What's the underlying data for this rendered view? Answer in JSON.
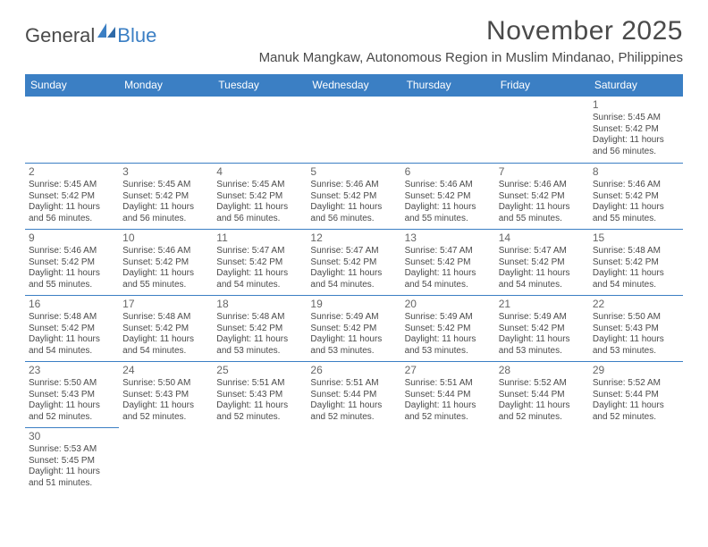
{
  "logo": {
    "text1": "General",
    "text2": "Blue"
  },
  "title": "November 2025",
  "location": "Manuk Mangkaw, Autonomous Region in Muslim Mindanao, Philippines",
  "colors": {
    "header_bg": "#3b7fc4",
    "header_text": "#ffffff",
    "rule": "#3b7fc4",
    "text": "#4a4a4a",
    "daynum": "#666666",
    "background": "#ffffff"
  },
  "day_names": [
    "Sunday",
    "Monday",
    "Tuesday",
    "Wednesday",
    "Thursday",
    "Friday",
    "Saturday"
  ],
  "labels": {
    "sunrise": "Sunrise: ",
    "sunset": "Sunset: ",
    "daylight_prefix": "Daylight: ",
    "hours_word": " hours",
    "and_word": "and ",
    "minutes_word": " minutes."
  },
  "weeks": [
    [
      null,
      null,
      null,
      null,
      null,
      null,
      {
        "n": "1",
        "rise": "5:45 AM",
        "set": "5:42 PM",
        "dlh": "11",
        "dlm": "56"
      }
    ],
    [
      {
        "n": "2",
        "rise": "5:45 AM",
        "set": "5:42 PM",
        "dlh": "11",
        "dlm": "56"
      },
      {
        "n": "3",
        "rise": "5:45 AM",
        "set": "5:42 PM",
        "dlh": "11",
        "dlm": "56"
      },
      {
        "n": "4",
        "rise": "5:45 AM",
        "set": "5:42 PM",
        "dlh": "11",
        "dlm": "56"
      },
      {
        "n": "5",
        "rise": "5:46 AM",
        "set": "5:42 PM",
        "dlh": "11",
        "dlm": "56"
      },
      {
        "n": "6",
        "rise": "5:46 AM",
        "set": "5:42 PM",
        "dlh": "11",
        "dlm": "55"
      },
      {
        "n": "7",
        "rise": "5:46 AM",
        "set": "5:42 PM",
        "dlh": "11",
        "dlm": "55"
      },
      {
        "n": "8",
        "rise": "5:46 AM",
        "set": "5:42 PM",
        "dlh": "11",
        "dlm": "55"
      }
    ],
    [
      {
        "n": "9",
        "rise": "5:46 AM",
        "set": "5:42 PM",
        "dlh": "11",
        "dlm": "55"
      },
      {
        "n": "10",
        "rise": "5:46 AM",
        "set": "5:42 PM",
        "dlh": "11",
        "dlm": "55"
      },
      {
        "n": "11",
        "rise": "5:47 AM",
        "set": "5:42 PM",
        "dlh": "11",
        "dlm": "54"
      },
      {
        "n": "12",
        "rise": "5:47 AM",
        "set": "5:42 PM",
        "dlh": "11",
        "dlm": "54"
      },
      {
        "n": "13",
        "rise": "5:47 AM",
        "set": "5:42 PM",
        "dlh": "11",
        "dlm": "54"
      },
      {
        "n": "14",
        "rise": "5:47 AM",
        "set": "5:42 PM",
        "dlh": "11",
        "dlm": "54"
      },
      {
        "n": "15",
        "rise": "5:48 AM",
        "set": "5:42 PM",
        "dlh": "11",
        "dlm": "54"
      }
    ],
    [
      {
        "n": "16",
        "rise": "5:48 AM",
        "set": "5:42 PM",
        "dlh": "11",
        "dlm": "54"
      },
      {
        "n": "17",
        "rise": "5:48 AM",
        "set": "5:42 PM",
        "dlh": "11",
        "dlm": "54"
      },
      {
        "n": "18",
        "rise": "5:48 AM",
        "set": "5:42 PM",
        "dlh": "11",
        "dlm": "53"
      },
      {
        "n": "19",
        "rise": "5:49 AM",
        "set": "5:42 PM",
        "dlh": "11",
        "dlm": "53"
      },
      {
        "n": "20",
        "rise": "5:49 AM",
        "set": "5:42 PM",
        "dlh": "11",
        "dlm": "53"
      },
      {
        "n": "21",
        "rise": "5:49 AM",
        "set": "5:42 PM",
        "dlh": "11",
        "dlm": "53"
      },
      {
        "n": "22",
        "rise": "5:50 AM",
        "set": "5:43 PM",
        "dlh": "11",
        "dlm": "53"
      }
    ],
    [
      {
        "n": "23",
        "rise": "5:50 AM",
        "set": "5:43 PM",
        "dlh": "11",
        "dlm": "52"
      },
      {
        "n": "24",
        "rise": "5:50 AM",
        "set": "5:43 PM",
        "dlh": "11",
        "dlm": "52"
      },
      {
        "n": "25",
        "rise": "5:51 AM",
        "set": "5:43 PM",
        "dlh": "11",
        "dlm": "52"
      },
      {
        "n": "26",
        "rise": "5:51 AM",
        "set": "5:44 PM",
        "dlh": "11",
        "dlm": "52"
      },
      {
        "n": "27",
        "rise": "5:51 AM",
        "set": "5:44 PM",
        "dlh": "11",
        "dlm": "52"
      },
      {
        "n": "28",
        "rise": "5:52 AM",
        "set": "5:44 PM",
        "dlh": "11",
        "dlm": "52"
      },
      {
        "n": "29",
        "rise": "5:52 AM",
        "set": "5:44 PM",
        "dlh": "11",
        "dlm": "52"
      }
    ],
    [
      {
        "n": "30",
        "rise": "5:53 AM",
        "set": "5:45 PM",
        "dlh": "11",
        "dlm": "51"
      },
      null,
      null,
      null,
      null,
      null,
      null
    ]
  ]
}
